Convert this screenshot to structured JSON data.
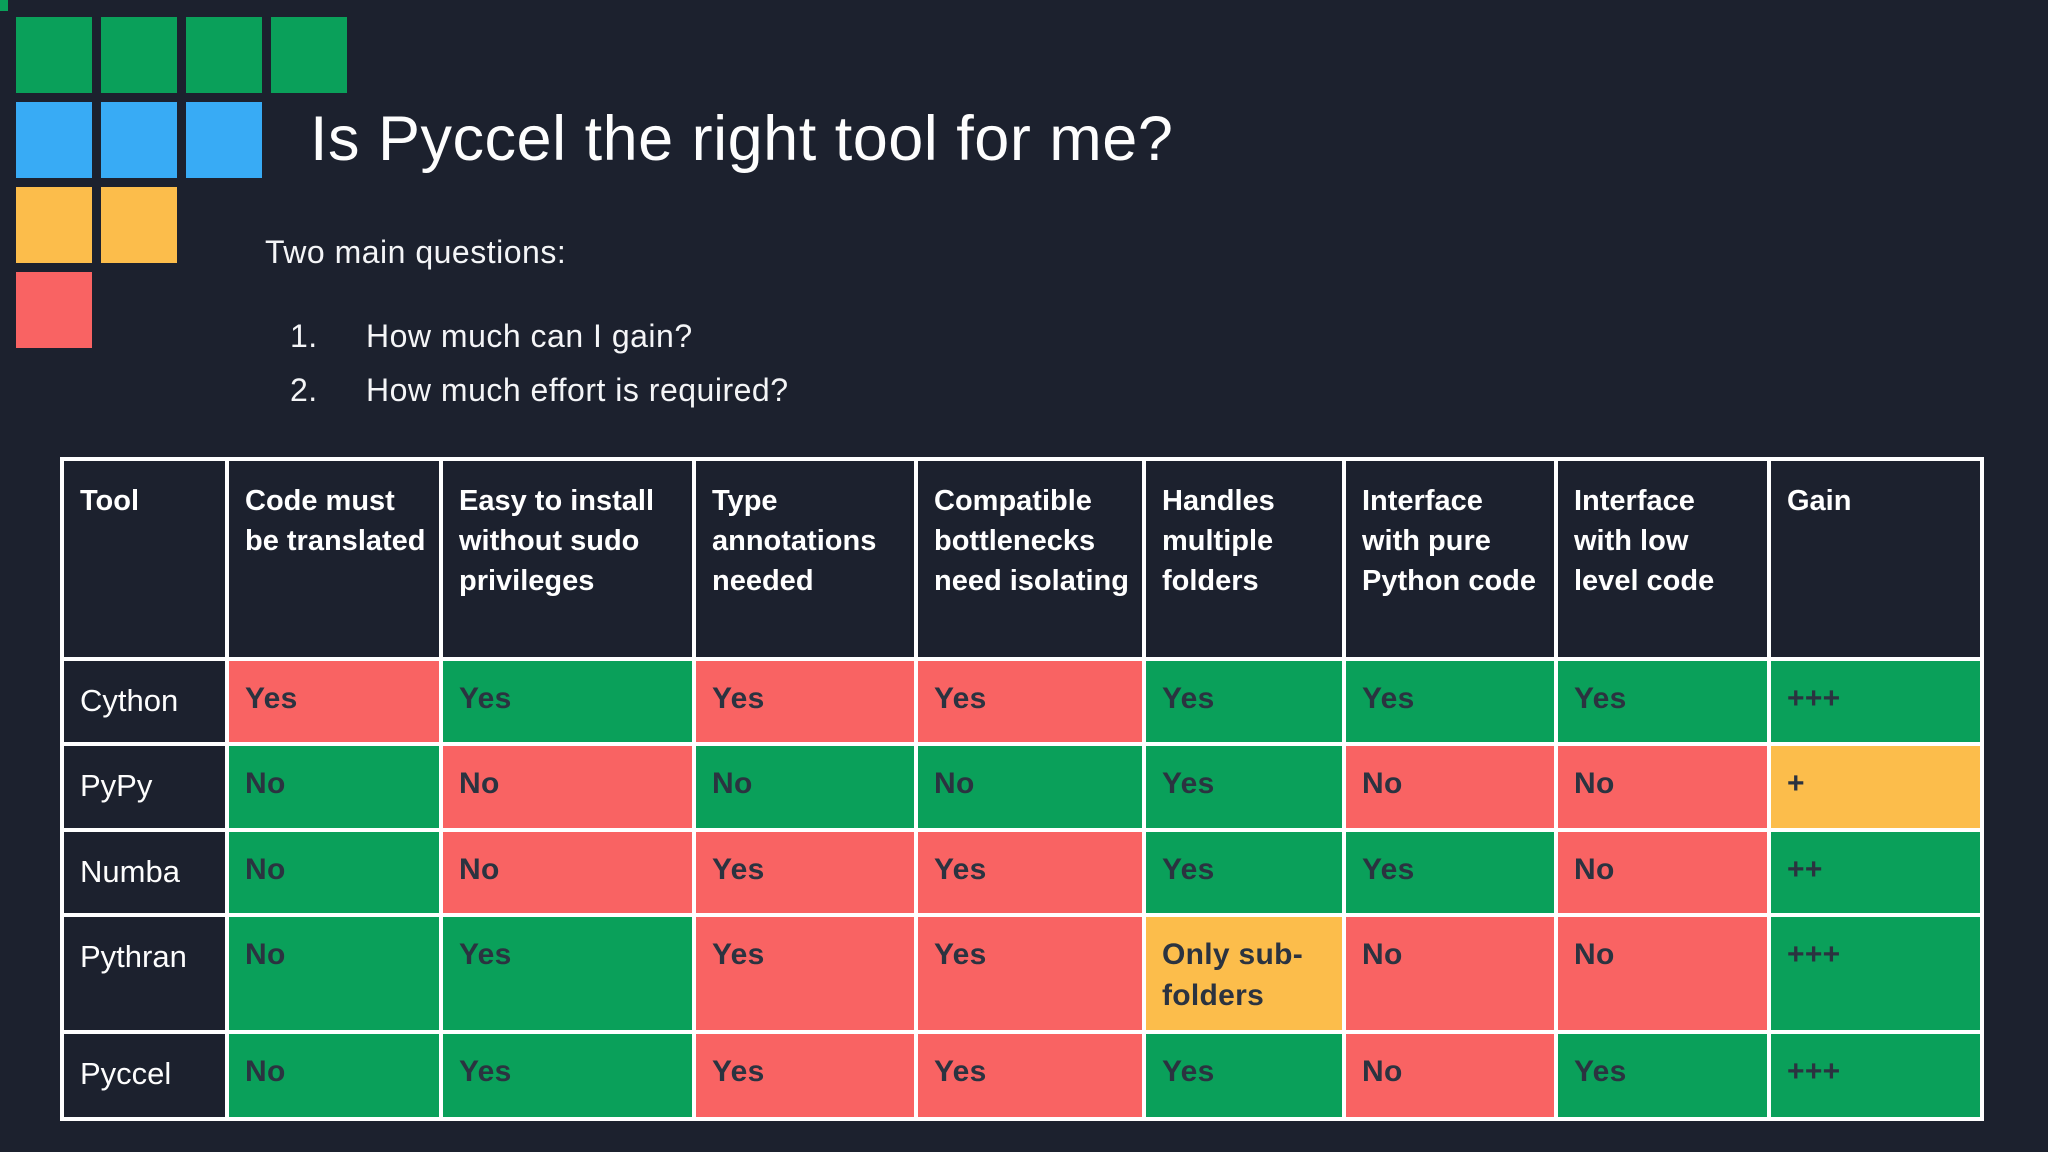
{
  "slide": {
    "title": "Is Pyccel the right tool for me?",
    "subtitle": "Two main questions:",
    "questions": [
      {
        "num": "1.",
        "text": "How much can I gain?"
      },
      {
        "num": "2.",
        "text": "How much effort is required?"
      }
    ]
  },
  "logo": {
    "rows": [
      {
        "name": "green",
        "color": "#0aa05a",
        "count": 4
      },
      {
        "name": "blue",
        "color": "#38abf5",
        "count": 3
      },
      {
        "name": "orange",
        "color": "#fcbd4b",
        "count": 2
      },
      {
        "name": "red",
        "color": "#f96363",
        "count": 1
      }
    ]
  },
  "colors": {
    "background": "#1c212e",
    "good": "#0aa05a",
    "bad": "#f96363",
    "warn": "#fcbd4b",
    "border": "#ffffff",
    "cell_text": "#2b3340",
    "heading_text": "#ffffff"
  },
  "table": {
    "headers": [
      "Tool",
      "Code must be translated",
      "Easy to install without sudo privileges",
      "Type annotations needed",
      "Compatible bottlenecks need isolating",
      "Handles multiple folders",
      "Interface with pure Python code",
      "Interface with low level code",
      "Gain"
    ],
    "rows": [
      {
        "tool": "Cython",
        "cells": [
          {
            "text": "Yes",
            "status": "bad"
          },
          {
            "text": "Yes",
            "status": "good"
          },
          {
            "text": "Yes",
            "status": "bad"
          },
          {
            "text": "Yes",
            "status": "bad"
          },
          {
            "text": "Yes",
            "status": "good"
          },
          {
            "text": "Yes",
            "status": "good"
          },
          {
            "text": "Yes",
            "status": "good"
          },
          {
            "text": "+++",
            "status": "good"
          }
        ]
      },
      {
        "tool": "PyPy",
        "cells": [
          {
            "text": "No",
            "status": "good"
          },
          {
            "text": "No",
            "status": "bad"
          },
          {
            "text": "No",
            "status": "good"
          },
          {
            "text": "No",
            "status": "good"
          },
          {
            "text": "Yes",
            "status": "good"
          },
          {
            "text": "No",
            "status": "bad"
          },
          {
            "text": "No",
            "status": "bad"
          },
          {
            "text": "+",
            "status": "warn"
          }
        ]
      },
      {
        "tool": "Numba",
        "cells": [
          {
            "text": "No",
            "status": "good"
          },
          {
            "text": "No",
            "status": "bad"
          },
          {
            "text": "Yes",
            "status": "bad"
          },
          {
            "text": "Yes",
            "status": "bad"
          },
          {
            "text": "Yes",
            "status": "good"
          },
          {
            "text": "Yes",
            "status": "good"
          },
          {
            "text": "No",
            "status": "bad"
          },
          {
            "text": "++",
            "status": "good"
          }
        ]
      },
      {
        "tool": "Pythran",
        "cells": [
          {
            "text": "No",
            "status": "good"
          },
          {
            "text": "Yes",
            "status": "good"
          },
          {
            "text": "Yes",
            "status": "bad"
          },
          {
            "text": "Yes",
            "status": "bad"
          },
          {
            "text": "Only sub-folders",
            "status": "warn"
          },
          {
            "text": "No",
            "status": "bad"
          },
          {
            "text": "No",
            "status": "bad"
          },
          {
            "text": "+++",
            "status": "good"
          }
        ]
      },
      {
        "tool": "Pyccel",
        "cells": [
          {
            "text": "No",
            "status": "good"
          },
          {
            "text": "Yes",
            "status": "good"
          },
          {
            "text": "Yes",
            "status": "bad"
          },
          {
            "text": "Yes",
            "status": "bad"
          },
          {
            "text": "Yes",
            "status": "good"
          },
          {
            "text": "No",
            "status": "bad"
          },
          {
            "text": "Yes",
            "status": "good"
          },
          {
            "text": "+++",
            "status": "good"
          }
        ]
      }
    ]
  }
}
